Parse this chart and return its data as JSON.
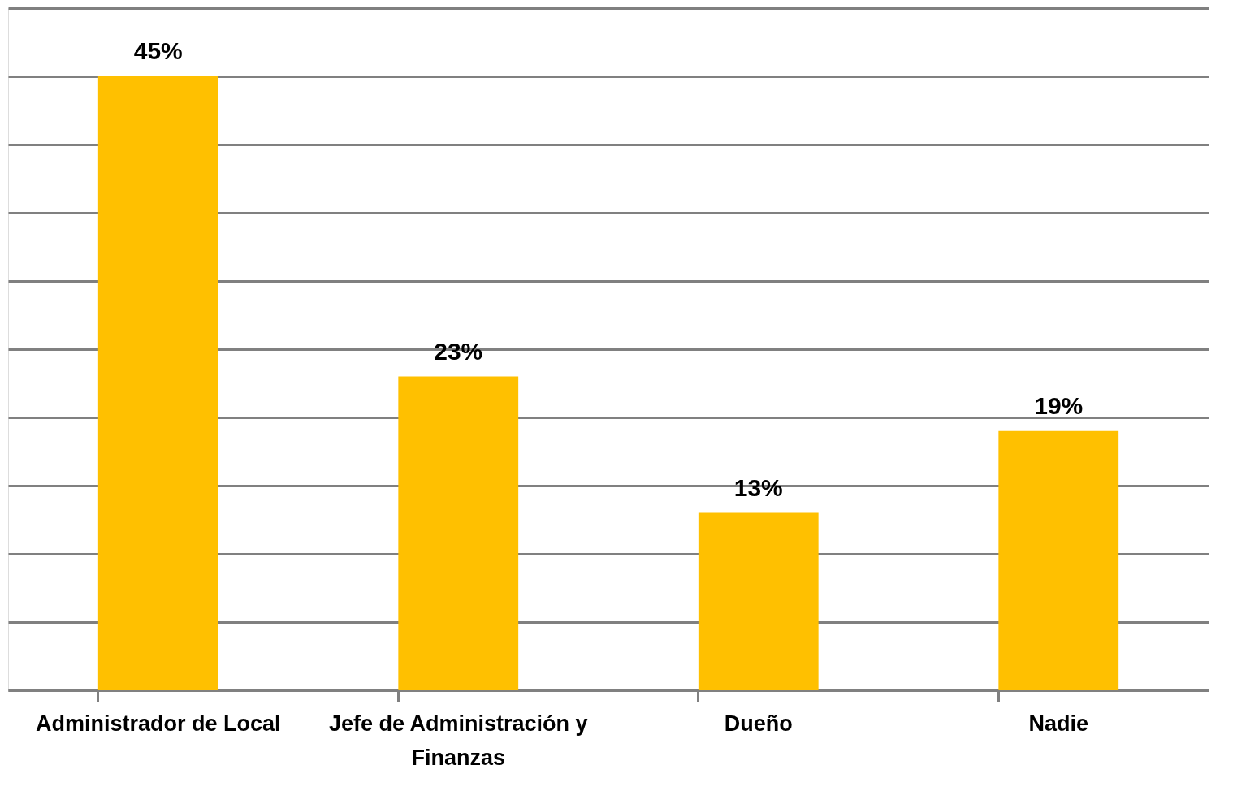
{
  "chart_data": {
    "type": "bar",
    "categories": [
      "Administrador de Local",
      "Jefe de Administración y Finanzas",
      "Dueño",
      "Nadie"
    ],
    "values": [
      45,
      23,
      13,
      19
    ],
    "value_labels": [
      "45%",
      "23%",
      "13%",
      "19%"
    ],
    "color": "#ffc000",
    "ylim": [
      0,
      50
    ],
    "yticks": [
      {
        "value": 0,
        "label": null
      },
      {
        "value": 5,
        "label": null
      },
      {
        "value": 10,
        "label": null
      },
      {
        "value": 15,
        "label": null
      },
      {
        "value": 20,
        "label": null
      },
      {
        "value": 25,
        "label": null
      },
      {
        "value": 30,
        "label": null
      },
      {
        "value": 35,
        "label": null
      },
      {
        "value": 40,
        "label": null
      },
      {
        "value": 45,
        "label": null
      },
      {
        "value": 50,
        "label": null
      }
    ],
    "tick_labels": "x",
    "grid": "y"
  }
}
